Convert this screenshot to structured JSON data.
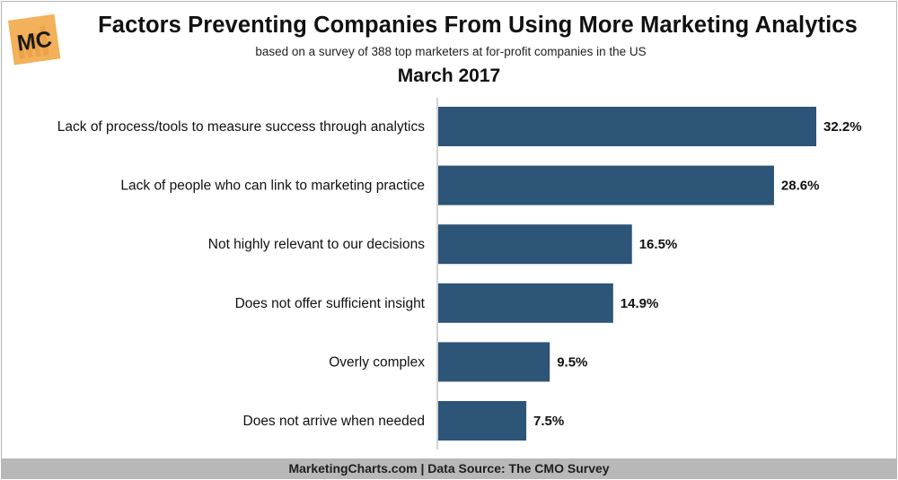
{
  "header": {
    "logo_text": "MC",
    "title": "Factors Preventing Companies From Using More Marketing Analytics",
    "subtitle": "based on a survey of 388 top marketers at for-profit companies in the US",
    "period": "March 2017"
  },
  "footer": {
    "text": "MarketingCharts.com | Data Source: The CMO Survey"
  },
  "colors": {
    "bar": "#2c5577",
    "logo_bg": "#f2b15a",
    "footer_bg": "#b8b8b8"
  },
  "chart_data": {
    "type": "bar",
    "orientation": "horizontal",
    "title": "Factors Preventing Companies From Using More Marketing Analytics",
    "categories": [
      "Lack of process/tools to measure success through analytics",
      "Lack of people who can link to marketing practice",
      "Not highly relevant to our decisions",
      "Does not offer sufficient insight",
      "Overly complex",
      "Does not arrive when needed"
    ],
    "values": [
      32.2,
      28.6,
      16.5,
      14.9,
      9.5,
      7.5
    ],
    "value_labels": [
      "32.2%",
      "28.6%",
      "16.5%",
      "14.9%",
      "9.5%",
      "7.5%"
    ],
    "unit": "%",
    "xlim": [
      0,
      32.2
    ],
    "grid": false,
    "legend": "none"
  }
}
